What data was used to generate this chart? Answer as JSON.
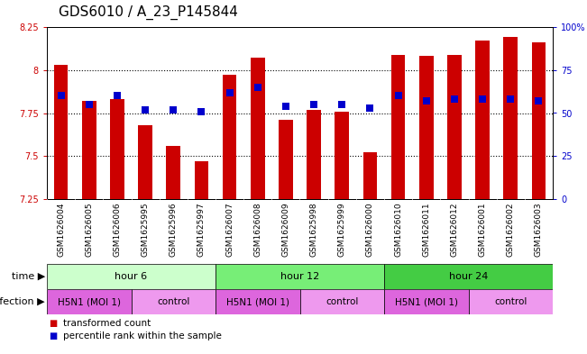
{
  "title": "GDS6010 / A_23_P145844",
  "samples": [
    "GSM1626004",
    "GSM1626005",
    "GSM1626006",
    "GSM1625995",
    "GSM1625996",
    "GSM1625997",
    "GSM1626007",
    "GSM1626008",
    "GSM1626009",
    "GSM1625998",
    "GSM1625999",
    "GSM1626000",
    "GSM1626010",
    "GSM1626011",
    "GSM1626012",
    "GSM1626001",
    "GSM1626002",
    "GSM1626003"
  ],
  "transformed_counts": [
    8.03,
    7.82,
    7.83,
    7.68,
    7.56,
    7.47,
    7.97,
    8.07,
    7.71,
    7.77,
    7.76,
    7.52,
    8.09,
    8.08,
    8.09,
    8.17,
    8.19,
    8.16
  ],
  "percentile_ranks": [
    60,
    55,
    60,
    52,
    52,
    51,
    62,
    65,
    54,
    55,
    55,
    53,
    60,
    57,
    58,
    58,
    58,
    57
  ],
  "ylim": [
    7.25,
    8.25
  ],
  "yticks": [
    7.25,
    7.5,
    7.75,
    8.0,
    8.25
  ],
  "ytick_labels": [
    "7.25",
    "7.5",
    "7.75",
    "8",
    "8.25"
  ],
  "right_yticks": [
    0,
    25,
    50,
    75,
    100
  ],
  "right_ytick_labels": [
    "0",
    "25",
    "50",
    "75",
    "100%"
  ],
  "bar_color": "#cc0000",
  "dot_color": "#0000cc",
  "bar_width": 0.5,
  "dot_size": 30,
  "time_groups": [
    {
      "label": "hour 6",
      "start": 0,
      "end": 6,
      "color": "#ccffcc"
    },
    {
      "label": "hour 12",
      "start": 6,
      "end": 12,
      "color": "#77ee77"
    },
    {
      "label": "hour 24",
      "start": 12,
      "end": 18,
      "color": "#44cc44"
    }
  ],
  "infection_groups": [
    {
      "label": "H5N1 (MOI 1)",
      "start": 0,
      "end": 3,
      "color": "#dd66dd"
    },
    {
      "label": "control",
      "start": 3,
      "end": 6,
      "color": "#ee99ee"
    },
    {
      "label": "H5N1 (MOI 1)",
      "start": 6,
      "end": 9,
      "color": "#dd66dd"
    },
    {
      "label": "control",
      "start": 9,
      "end": 12,
      "color": "#ee99ee"
    },
    {
      "label": "H5N1 (MOI 1)",
      "start": 12,
      "end": 15,
      "color": "#dd66dd"
    },
    {
      "label": "control",
      "start": 15,
      "end": 18,
      "color": "#ee99ee"
    }
  ],
  "axis_color_left": "#cc0000",
  "axis_color_right": "#0000cc",
  "bg_color": "#ffffff",
  "sample_bg": "#cccccc",
  "title_fontsize": 11,
  "tick_fontsize": 7,
  "label_fontsize": 6.5,
  "row_fontsize": 8
}
